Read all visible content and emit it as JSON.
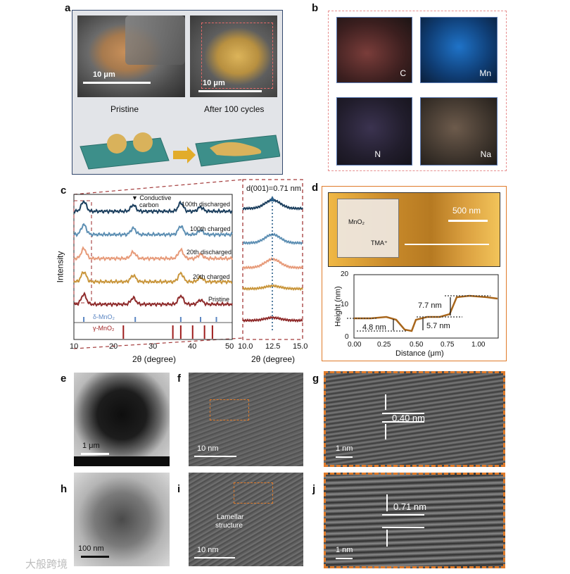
{
  "panels": {
    "a": {
      "label": "a",
      "left_caption": "Pristine",
      "right_caption": "After 100 cycles",
      "scale_left": "10 μm",
      "scale_right": "10 μm"
    },
    "b": {
      "label": "b",
      "maps": [
        "C",
        "Mn",
        "N",
        "Na"
      ]
    },
    "c": {
      "label": "c",
      "ylabel": "Intensity",
      "xlabel_main": "2θ (degree)",
      "xlabel_zoom": "2θ (degree)",
      "annotation": "d(001)=0.71 nm",
      "carbon_note_line1": "▼ Conductive",
      "carbon_note_line2": "carbon",
      "series_labels": [
        "100th discharged",
        "100th charged",
        "20th discharged",
        "20th charged",
        "Pristine"
      ],
      "ref_delta": "δ-MnO₂",
      "ref_gamma": "γ-MnO₂",
      "ticks_main": [
        "10",
        "20",
        "30",
        "40",
        "50"
      ],
      "ticks_zoom": [
        "10.0",
        "12.5",
        "15.0"
      ]
    },
    "d": {
      "label": "d",
      "scale": "500 nm",
      "inset_mno2": "MnO₂",
      "inset_tma": "TMA⁺",
      "ylabel": "Height (nm)",
      "xlabel": "Distance (μm)",
      "steps": [
        "7.7 nm",
        "4.8 nm",
        "5.7 nm"
      ],
      "yticks": [
        "0",
        "10",
        "20"
      ],
      "xticks": [
        "0.00",
        "0.25",
        "0.50",
        "0.75",
        "1.00"
      ]
    },
    "e": {
      "label": "e",
      "scale": "1 μm"
    },
    "f": {
      "label": "f",
      "scale": "10 nm"
    },
    "g": {
      "label": "g",
      "scale": "1 nm",
      "spacing": "0.40 nm"
    },
    "h": {
      "label": "h",
      "scale": "100 nm"
    },
    "i": {
      "label": "i",
      "scale": "10 nm",
      "note_line1": "Lamellar",
      "note_line2": "structure"
    },
    "j": {
      "label": "j",
      "scale": "1 nm",
      "spacing": "0.71 nm"
    }
  },
  "watermark": "大般跨境",
  "colors": {
    "series": [
      "#1c3f5e",
      "#5d8fb3",
      "#e79b7a",
      "#c9963c",
      "#8f2c2c"
    ],
    "delta_ref": "#5b86c2",
    "gamma_ref": "#9e1c1c",
    "frame_orange": "#e07b2a",
    "frame_pink": "#e79090",
    "frame_navy": "#34496d"
  }
}
